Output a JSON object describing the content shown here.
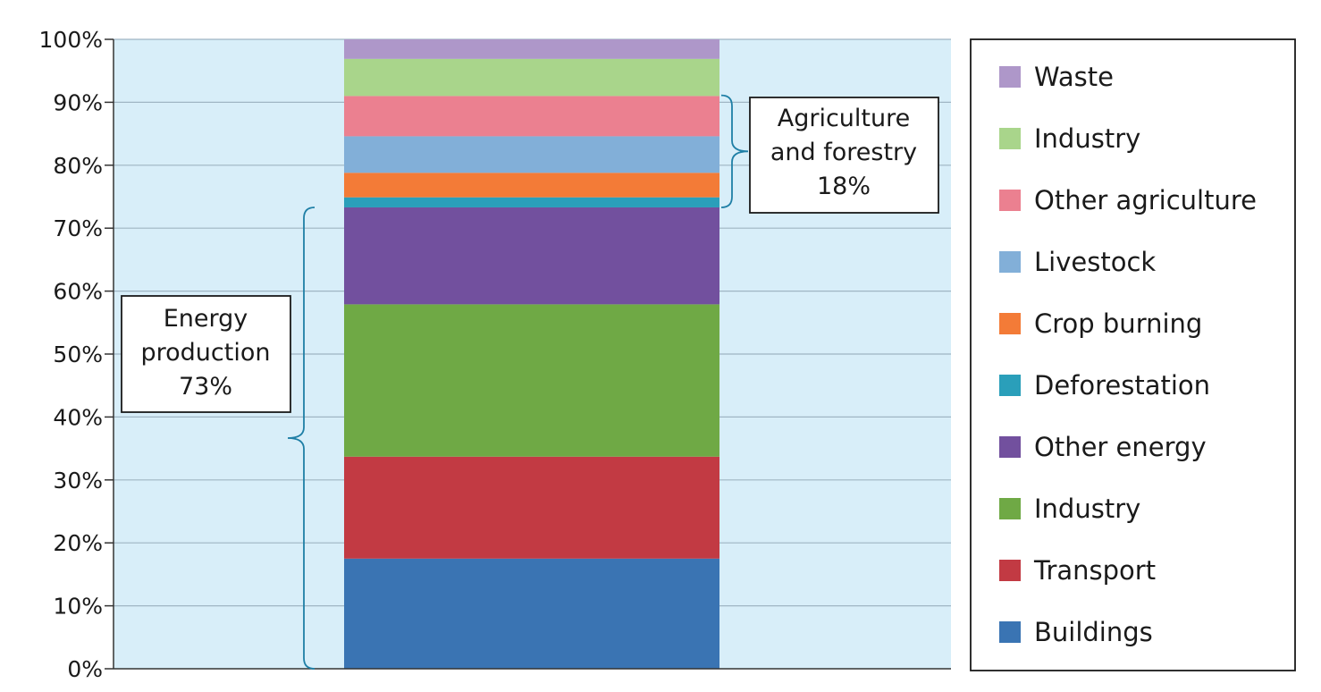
{
  "chart_data": {
    "type": "bar",
    "stacked": true,
    "categories": [
      ""
    ],
    "ylim": [
      0,
      100
    ],
    "yticks": [
      "0%",
      "10%",
      "20%",
      "30%",
      "40%",
      "50%",
      "60%",
      "70%",
      "80%",
      "90%",
      "100%"
    ],
    "grid": true,
    "legend_position": "right",
    "series": [
      {
        "name": "Buildings",
        "values": [
          17.5
        ],
        "color": "#3a74b3"
      },
      {
        "name": "Transport",
        "values": [
          16.2
        ],
        "color": "#c23a43"
      },
      {
        "name": "Industry",
        "values": [
          24.2
        ],
        "color": "#6fa945"
      },
      {
        "name": "Other energy",
        "values": [
          15.4
        ],
        "color": "#72509e"
      },
      {
        "name": "Deforestation",
        "values": [
          1.6
        ],
        "color": "#2a9fba"
      },
      {
        "name": "Crop burning",
        "values": [
          3.9
        ],
        "color": "#f37b37"
      },
      {
        "name": "Livestock",
        "values": [
          5.8
        ],
        "color": "#82afd8"
      },
      {
        "name": "Other agriculture",
        "values": [
          6.4
        ],
        "color": "#eb8090"
      },
      {
        "name": "Industry",
        "values": [
          5.9
        ],
        "color": "#a9d58b"
      },
      {
        "name": "Waste",
        "values": [
          3.1
        ],
        "color": "#ae97c9"
      }
    ],
    "annotations": [
      {
        "lines": [
          "Energy",
          "production",
          "73%"
        ],
        "range": [
          0,
          73.3
        ]
      },
      {
        "lines": [
          "Agriculture",
          "and forestry",
          "18%"
        ],
        "range": [
          73.3,
          91.1
        ]
      }
    ]
  },
  "colors": {
    "plot_background": "#d8eef9",
    "gridline": "#9fb5c3",
    "axis": "#333333",
    "bracket": "#1f7fa6"
  }
}
